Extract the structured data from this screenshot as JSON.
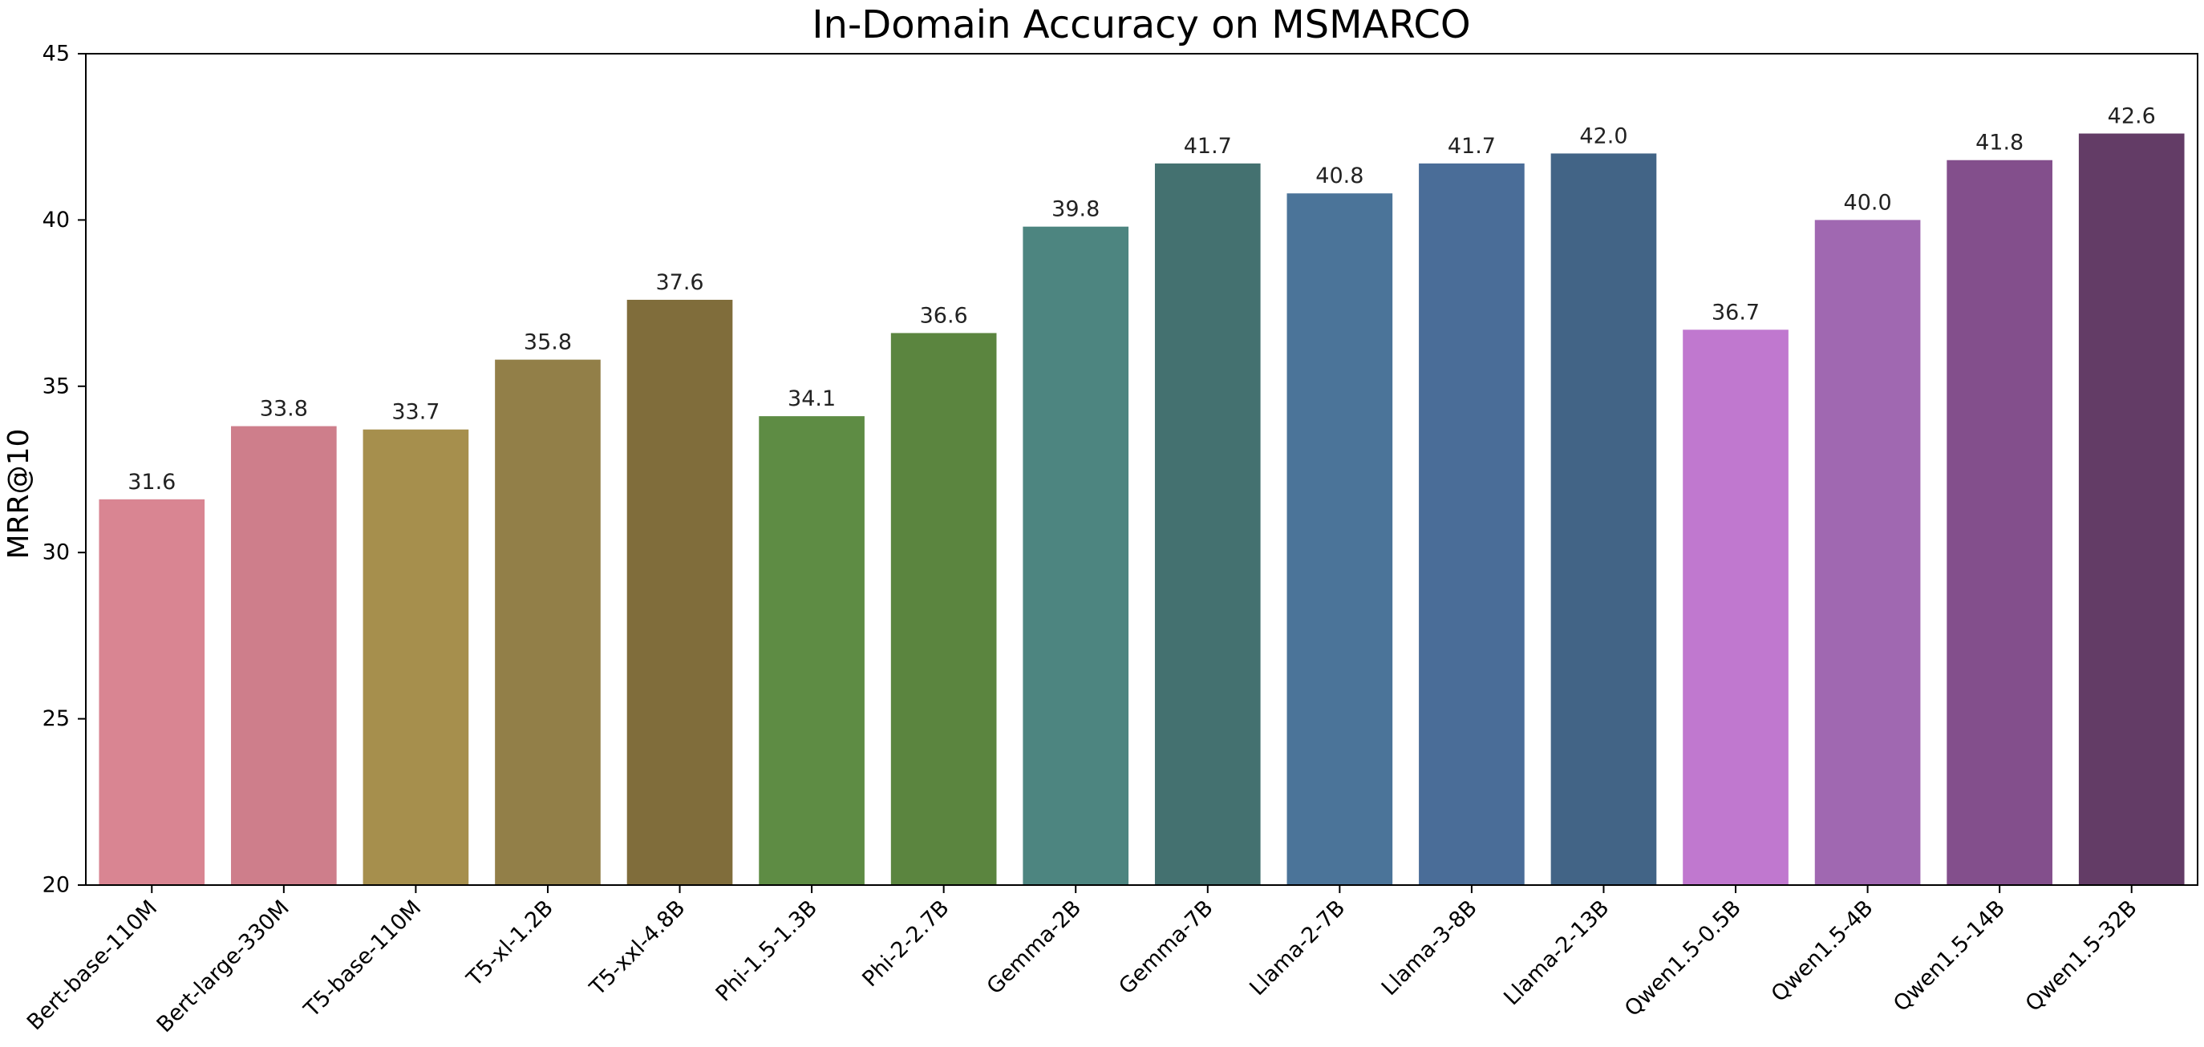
{
  "chart_data": {
    "type": "bar",
    "title": "In-Domain Accuracy on MSMARCO",
    "xlabel": "",
    "ylabel": "MRR@10",
    "ylim": [
      20,
      45
    ],
    "yticks": [
      20,
      25,
      30,
      35,
      40,
      45
    ],
    "grid": false,
    "legend": "none",
    "categories": [
      "Bert-base-110M",
      "Bert-large-330M",
      "T5-base-110M",
      "T5-xl-1.2B",
      "T5-xxl-4.8B",
      "Phi-1.5-1.3B",
      "Phi-2-2.7B",
      "Gemma-2B",
      "Gemma-7B",
      "Llama-2-7B",
      "Llama-3-8B",
      "Llama-2-13B",
      "Qwen1.5-0.5B",
      "Qwen1.5-4B",
      "Qwen1.5-14B",
      "Qwen1.5-32B"
    ],
    "values": [
      31.6,
      33.8,
      33.7,
      35.8,
      37.6,
      34.1,
      36.6,
      39.8,
      41.7,
      40.8,
      41.7,
      42.0,
      36.7,
      40.0,
      41.8,
      42.6
    ],
    "value_labels": [
      "31.6",
      "33.8",
      "33.7",
      "35.8",
      "37.6",
      "34.1",
      "36.6",
      "39.8",
      "41.7",
      "40.8",
      "41.7",
      "42.0",
      "36.7",
      "40.0",
      "41.8",
      "42.6"
    ],
    "colors": [
      "#d98592",
      "#ce7e8b",
      "#a68f4d",
      "#927f48",
      "#806d3b",
      "#5e8c44",
      "#5b853f",
      "#4d8580",
      "#447170",
      "#4b7499",
      "#4a6d98",
      "#426486",
      "#c078cf",
      "#a068b1",
      "#834f8c",
      "#633c66"
    ]
  }
}
